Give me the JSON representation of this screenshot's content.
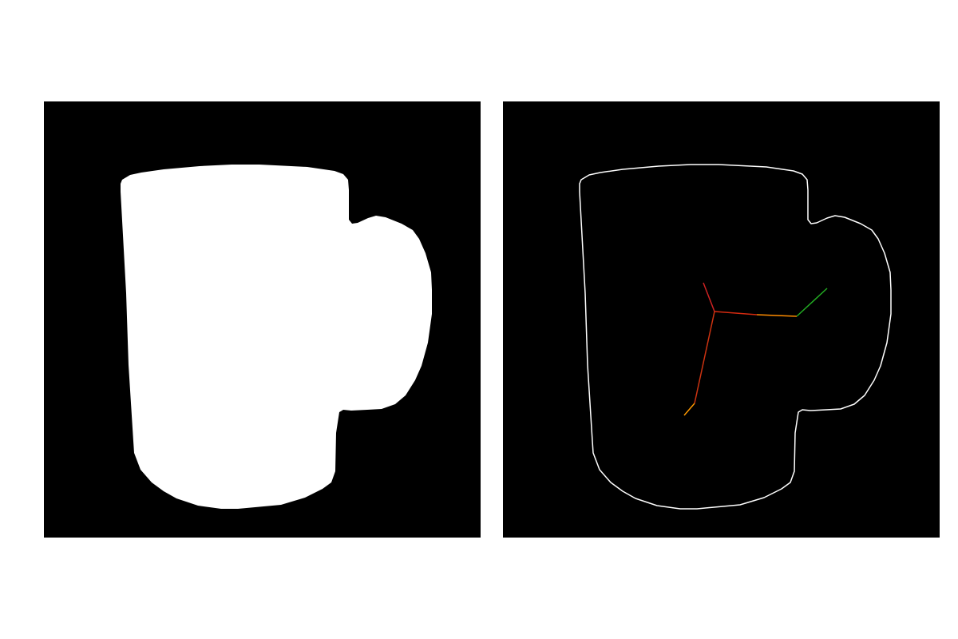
{
  "figure": {
    "panels": [
      {
        "id": "mask",
        "content": "filled-silhouette",
        "background_color": "#000000",
        "fill_color": "#ffffff"
      },
      {
        "id": "contour",
        "content": "outline-with-skeleton",
        "background_color": "#000000",
        "outline_color": "#ffffff"
      }
    ],
    "skeleton": {
      "colors": {
        "branch_up": "#cc2222",
        "branch_down": "#cc3311",
        "branch_down_tip": "#ff9900",
        "branch_right": "#d42a10",
        "branch_right_mid": "#ff8c00",
        "branch_right_tip": "#22aa22"
      }
    }
  }
}
